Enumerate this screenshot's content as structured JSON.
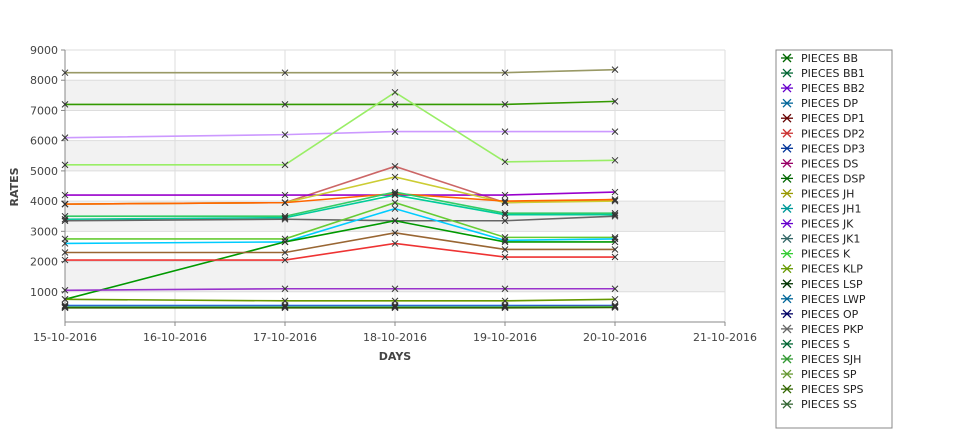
{
  "chart_data": {
    "type": "line",
    "xlabel": "DAYS",
    "ylabel": "RATES",
    "x_ticks": [
      "15-10-2016",
      "16-10-2016",
      "17-10-2016",
      "18-10-2016",
      "19-10-2016",
      "20-10-2016",
      "21-10-2016"
    ],
    "x_dates": [
      "15-10-2016",
      "17-10-2016",
      "18-10-2016",
      "19-10-2016",
      "20-10-2016"
    ],
    "y_ticks": [
      1000,
      2000,
      3000,
      4000,
      5000,
      6000,
      7000,
      8000,
      9000
    ],
    "ylim": [
      0,
      9000
    ],
    "grid": true,
    "legend_position": "right",
    "series": [
      {
        "name": "PIECES BB",
        "color": "#999966",
        "values": [
          8250,
          8250,
          8250,
          8250,
          8350
        ]
      },
      {
        "name": "PIECES BB1",
        "color": "#339900",
        "values": [
          7200,
          7200,
          7200,
          7200,
          7300
        ]
      },
      {
        "name": "PIECES BB2",
        "color": "#cc99ff",
        "values": [
          6100,
          6200,
          6300,
          6300,
          6300
        ]
      },
      {
        "name": "PIECES DP",
        "color": "#99ee66",
        "values": [
          5200,
          5200,
          7600,
          5300,
          5350
        ]
      },
      {
        "name": "PIECES DP1",
        "color": "#cc6666",
        "values": [
          3900,
          3950,
          5150,
          3950,
          4050
        ]
      },
      {
        "name": "PIECES DP2",
        "color": "#9900cc",
        "values": [
          4200,
          4200,
          4200,
          4200,
          4300
        ]
      },
      {
        "name": "PIECES DP3",
        "color": "#cccc33",
        "values": [
          3900,
          3950,
          4800,
          3950,
          4000
        ]
      },
      {
        "name": "PIECES DS",
        "color": "#ff6600",
        "values": [
          3900,
          3950,
          4250,
          4000,
          4050
        ]
      },
      {
        "name": "PIECES DSP",
        "color": "#33cc66",
        "values": [
          3500,
          3500,
          4300,
          3600,
          3600
        ]
      },
      {
        "name": "PIECES JH",
        "color": "#00cc99",
        "values": [
          3400,
          3450,
          4200,
          3550,
          3550
        ]
      },
      {
        "name": "PIECES JH1",
        "color": "#666666",
        "values": [
          3350,
          3400,
          3350,
          3350,
          3500
        ]
      },
      {
        "name": "PIECES JK",
        "color": "#66cc33",
        "values": [
          2750,
          2750,
          3950,
          2800,
          2800
        ]
      },
      {
        "name": "PIECES JK1",
        "color": "#00ccff",
        "values": [
          2600,
          2650,
          3750,
          2700,
          2750
        ]
      },
      {
        "name": "PIECES K",
        "color": "#009900",
        "values": [
          750,
          2650,
          3350,
          2650,
          2650
        ]
      },
      {
        "name": "PIECES KLP",
        "color": "#996633",
        "values": [
          2300,
          2300,
          2950,
          2400,
          2400
        ]
      },
      {
        "name": "PIECES LSP",
        "color": "#ee3333",
        "values": [
          2050,
          2050,
          2600,
          2150,
          2150
        ]
      },
      {
        "name": "PIECES LWP",
        "color": "#9933cc",
        "values": [
          1050,
          1100,
          1100,
          1100,
          1100
        ]
      },
      {
        "name": "PIECES OP",
        "color": "#669900",
        "values": [
          750,
          700,
          700,
          700,
          750
        ]
      },
      {
        "name": "PIECES PKP",
        "color": "#3399ff",
        "values": [
          550,
          550,
          550,
          550,
          550
        ]
      },
      {
        "name": "PIECES S",
        "color": "#333399",
        "values": [
          520,
          520,
          520,
          520,
          530
        ]
      },
      {
        "name": "PIECES SJH",
        "color": "#999999",
        "values": [
          500,
          500,
          500,
          500,
          510
        ]
      },
      {
        "name": "PIECES SP",
        "color": "#00cccc",
        "values": [
          490,
          490,
          490,
          490,
          500
        ]
      },
      {
        "name": "PIECES SPS",
        "color": "#66cc00",
        "values": [
          480,
          480,
          480,
          480,
          490
        ]
      },
      {
        "name": "PIECES SS",
        "color": "#336600",
        "values": [
          470,
          470,
          470,
          470,
          480
        ]
      }
    ],
    "legend_marker_colors": [
      "#006600",
      "#006633",
      "#6600cc",
      "#006699",
      "#660000",
      "#cc3333",
      "#003399",
      "#990066",
      "#006600",
      "#999900",
      "#009999",
      "#6600cc",
      "#336666",
      "#33cc33",
      "#669900",
      "#003300",
      "#006699",
      "#000066",
      "#666666",
      "#006633",
      "#339933",
      "#669933",
      "#336600",
      "#336633"
    ]
  }
}
